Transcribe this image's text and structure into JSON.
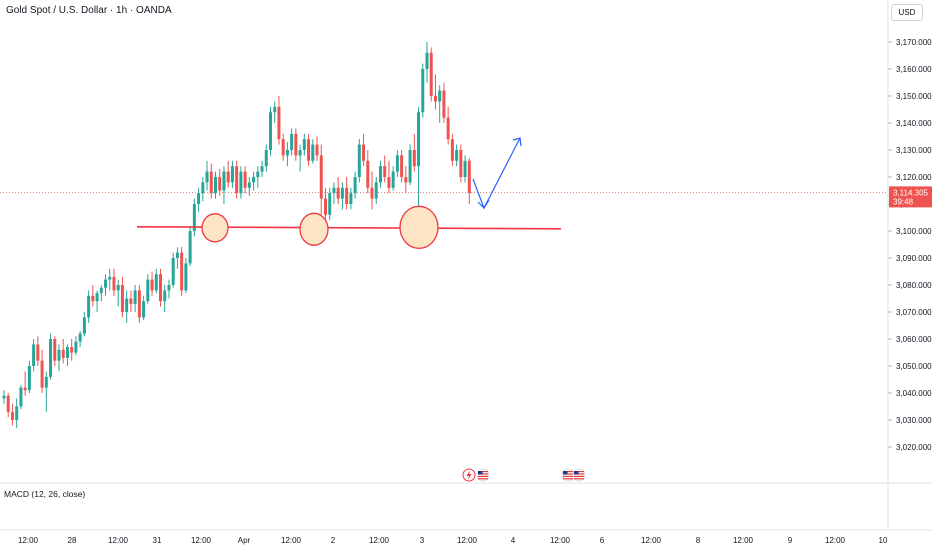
{
  "header": {
    "title": "Gold Spot / U.S. Dollar · 1h · OANDA",
    "currency": "USD"
  },
  "price_scale": {
    "current_price": "3,114.305",
    "countdown": "39:48",
    "current_price_value": 3114.305
  },
  "indicator": {
    "label": "MACD (12, 26, close)"
  },
  "icons": [
    "lightning-event-icon",
    "us-flag-event-icon",
    "us-flag-event-icon",
    "us-flag-event-icon"
  ],
  "colors": {
    "up": "#26a69a",
    "down": "#ef5350",
    "support": "#f23645",
    "circle_fill": "#fce4c4",
    "arrow": "#2962ff"
  },
  "chart_data": {
    "type": "candlestick",
    "symbol": "Gold Spot / U.S. Dollar",
    "interval": "1h",
    "title": "Gold Spot / U.S. Dollar · 1h · OANDA",
    "y_ticks": [
      3170,
      3160,
      3150,
      3140,
      3130,
      3120,
      3110,
      3100,
      3090,
      3080,
      3070,
      3060,
      3050,
      3040,
      3030,
      3020
    ],
    "y_tick_labels": [
      "3,170.000",
      "3,160.000",
      "3,150.000",
      "3,140.000",
      "3,130.000",
      "3,120.000",
      "3,110.000",
      "3,100.000",
      "3,090.000",
      "3,080.000",
      "3,070.000",
      "3,060.000",
      "3,050.000",
      "3,040.000",
      "3,030.000",
      "3,020.000"
    ],
    "ylim": [
      3015,
      3178
    ],
    "x_ticks": [
      "12:00",
      "28",
      "12:00",
      "31",
      "12:00",
      "Apr",
      "12:00",
      "2",
      "12:00",
      "3",
      "12:00",
      "4",
      "12:00",
      "6",
      "12:00",
      "8",
      "12:00",
      "9",
      "12:00",
      "10"
    ],
    "support_level": 3101,
    "candles": [
      [
        3038,
        3041,
        3036,
        3039
      ],
      [
        3039,
        3040,
        3031,
        3033
      ],
      [
        3033,
        3036,
        3028,
        3030
      ],
      [
        3030,
        3038,
        3027,
        3035
      ],
      [
        3035,
        3043,
        3034,
        3042
      ],
      [
        3042,
        3048,
        3039,
        3041
      ],
      [
        3041,
        3052,
        3040,
        3050
      ],
      [
        3050,
        3060,
        3048,
        3058
      ],
      [
        3058,
        3061,
        3050,
        3052
      ],
      [
        3052,
        3056,
        3040,
        3042
      ],
      [
        3042,
        3048,
        3033,
        3046
      ],
      [
        3046,
        3062,
        3045,
        3060
      ],
      [
        3060,
        3061,
        3050,
        3052
      ],
      [
        3052,
        3058,
        3048,
        3056
      ],
      [
        3056,
        3060,
        3051,
        3053
      ],
      [
        3053,
        3058,
        3050,
        3057
      ],
      [
        3057,
        3060,
        3052,
        3055
      ],
      [
        3055,
        3061,
        3054,
        3059
      ],
      [
        3059,
        3063,
        3057,
        3062
      ],
      [
        3062,
        3070,
        3061,
        3068
      ],
      [
        3068,
        3078,
        3066,
        3076
      ],
      [
        3076,
        3080,
        3072,
        3074
      ],
      [
        3074,
        3078,
        3070,
        3077
      ],
      [
        3077,
        3080,
        3074,
        3079
      ],
      [
        3079,
        3084,
        3076,
        3082
      ],
      [
        3082,
        3086,
        3078,
        3083
      ],
      [
        3083,
        3086,
        3076,
        3078
      ],
      [
        3078,
        3082,
        3072,
        3080
      ],
      [
        3080,
        3083,
        3068,
        3070
      ],
      [
        3070,
        3078,
        3066,
        3075
      ],
      [
        3075,
        3078,
        3070,
        3073
      ],
      [
        3073,
        3080,
        3070,
        3078
      ],
      [
        3078,
        3080,
        3066,
        3068
      ],
      [
        3068,
        3076,
        3067,
        3074
      ],
      [
        3074,
        3084,
        3073,
        3082
      ],
      [
        3082,
        3085,
        3076,
        3078
      ],
      [
        3078,
        3086,
        3077,
        3084
      ],
      [
        3084,
        3086,
        3072,
        3074
      ],
      [
        3074,
        3080,
        3070,
        3078
      ],
      [
        3078,
        3082,
        3075,
        3080
      ],
      [
        3080,
        3092,
        3079,
        3090
      ],
      [
        3090,
        3094,
        3086,
        3092
      ],
      [
        3092,
        3094,
        3076,
        3078
      ],
      [
        3078,
        3090,
        3077,
        3088
      ],
      [
        3088,
        3102,
        3087,
        3100
      ],
      [
        3100,
        3112,
        3098,
        3110
      ],
      [
        3110,
        3116,
        3107,
        3114
      ],
      [
        3114,
        3120,
        3111,
        3118
      ],
      [
        3118,
        3126,
        3115,
        3122
      ],
      [
        3122,
        3125,
        3112,
        3114
      ],
      [
        3114,
        3122,
        3112,
        3120
      ],
      [
        3120,
        3123,
        3113,
        3115
      ],
      [
        3115,
        3124,
        3110,
        3122
      ],
      [
        3122,
        3126,
        3116,
        3118
      ],
      [
        3118,
        3126,
        3116,
        3124
      ],
      [
        3124,
        3126,
        3112,
        3114
      ],
      [
        3114,
        3124,
        3112,
        3122
      ],
      [
        3122,
        3124,
        3114,
        3116
      ],
      [
        3116,
        3120,
        3113,
        3118
      ],
      [
        3118,
        3122,
        3115,
        3120
      ],
      [
        3120,
        3124,
        3116,
        3122
      ],
      [
        3122,
        3126,
        3120,
        3124
      ],
      [
        3124,
        3132,
        3122,
        3130
      ],
      [
        3130,
        3146,
        3128,
        3144
      ],
      [
        3144,
        3148,
        3140,
        3146
      ],
      [
        3146,
        3150,
        3132,
        3134
      ],
      [
        3134,
        3136,
        3126,
        3128
      ],
      [
        3128,
        3133,
        3124,
        3130
      ],
      [
        3130,
        3138,
        3128,
        3136
      ],
      [
        3136,
        3138,
        3126,
        3128
      ],
      [
        3128,
        3132,
        3122,
        3130
      ],
      [
        3130,
        3136,
        3128,
        3134
      ],
      [
        3134,
        3136,
        3124,
        3126
      ],
      [
        3126,
        3134,
        3125,
        3132
      ],
      [
        3132,
        3135,
        3126,
        3128
      ],
      [
        3128,
        3132,
        3106,
        3112
      ],
      [
        3112,
        3116,
        3103,
        3106
      ],
      [
        3106,
        3116,
        3104,
        3114
      ],
      [
        3114,
        3118,
        3110,
        3116
      ],
      [
        3116,
        3120,
        3110,
        3112
      ],
      [
        3112,
        3118,
        3108,
        3116
      ],
      [
        3116,
        3120,
        3108,
        3110
      ],
      [
        3110,
        3116,
        3108,
        3114
      ],
      [
        3114,
        3122,
        3112,
        3120
      ],
      [
        3120,
        3134,
        3118,
        3132
      ],
      [
        3132,
        3136,
        3124,
        3126
      ],
      [
        3126,
        3130,
        3114,
        3116
      ],
      [
        3116,
        3122,
        3108,
        3112
      ],
      [
        3112,
        3120,
        3110,
        3118
      ],
      [
        3118,
        3126,
        3116,
        3124
      ],
      [
        3124,
        3128,
        3118,
        3120
      ],
      [
        3120,
        3126,
        3114,
        3116
      ],
      [
        3116,
        3124,
        3115,
        3122
      ],
      [
        3122,
        3130,
        3120,
        3128
      ],
      [
        3128,
        3130,
        3118,
        3120
      ],
      [
        3120,
        3124,
        3114,
        3118
      ],
      [
        3118,
        3132,
        3117,
        3130
      ],
      [
        3130,
        3136,
        3122,
        3124
      ],
      [
        3124,
        3146,
        3108,
        3144
      ],
      [
        3144,
        3162,
        3142,
        3160
      ],
      [
        3160,
        3170,
        3155,
        3166
      ],
      [
        3166,
        3168,
        3148,
        3150
      ],
      [
        3150,
        3158,
        3145,
        3148
      ],
      [
        3148,
        3154,
        3140,
        3152
      ],
      [
        3152,
        3155,
        3140,
        3142
      ],
      [
        3142,
        3146,
        3132,
        3134
      ],
      [
        3134,
        3136,
        3124,
        3126
      ],
      [
        3126,
        3132,
        3124,
        3130
      ],
      [
        3130,
        3132,
        3118,
        3120
      ],
      [
        3120,
        3128,
        3118,
        3126
      ],
      [
        3126,
        3127,
        3110,
        3114
      ]
    ]
  }
}
